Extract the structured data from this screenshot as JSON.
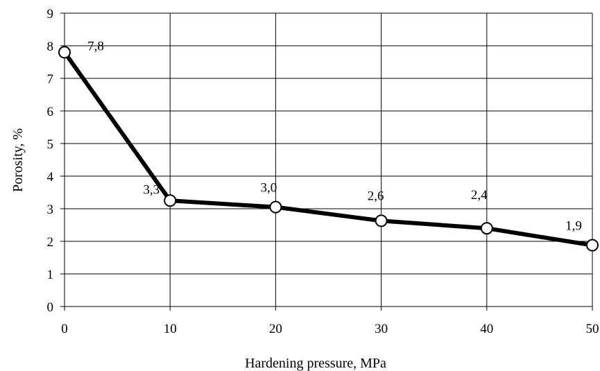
{
  "chart_data": {
    "type": "line",
    "title": "",
    "xlabel": "Hardening pressure, MPa",
    "ylabel": "Porosity, %",
    "x": [
      0,
      10,
      20,
      30,
      40,
      50
    ],
    "series": [
      {
        "values": [
          7.8,
          3.25,
          3.05,
          2.63,
          2.4,
          1.88
        ],
        "labels": [
          "7,8",
          "3,3",
          "3,0",
          "2,6",
          "2,4",
          "1,9"
        ]
      }
    ],
    "xlim": [
      0,
      50
    ],
    "ylim": [
      0,
      9
    ],
    "xticks": [
      "0",
      "10",
      "20",
      "30",
      "40",
      "50"
    ],
    "yticks": [
      "0",
      "1",
      "2",
      "3",
      "4",
      "5",
      "6",
      "7",
      "8",
      "9"
    ],
    "grid": true,
    "legend": "none",
    "line_color": "#000000",
    "marker_fill": "#ffffff"
  }
}
